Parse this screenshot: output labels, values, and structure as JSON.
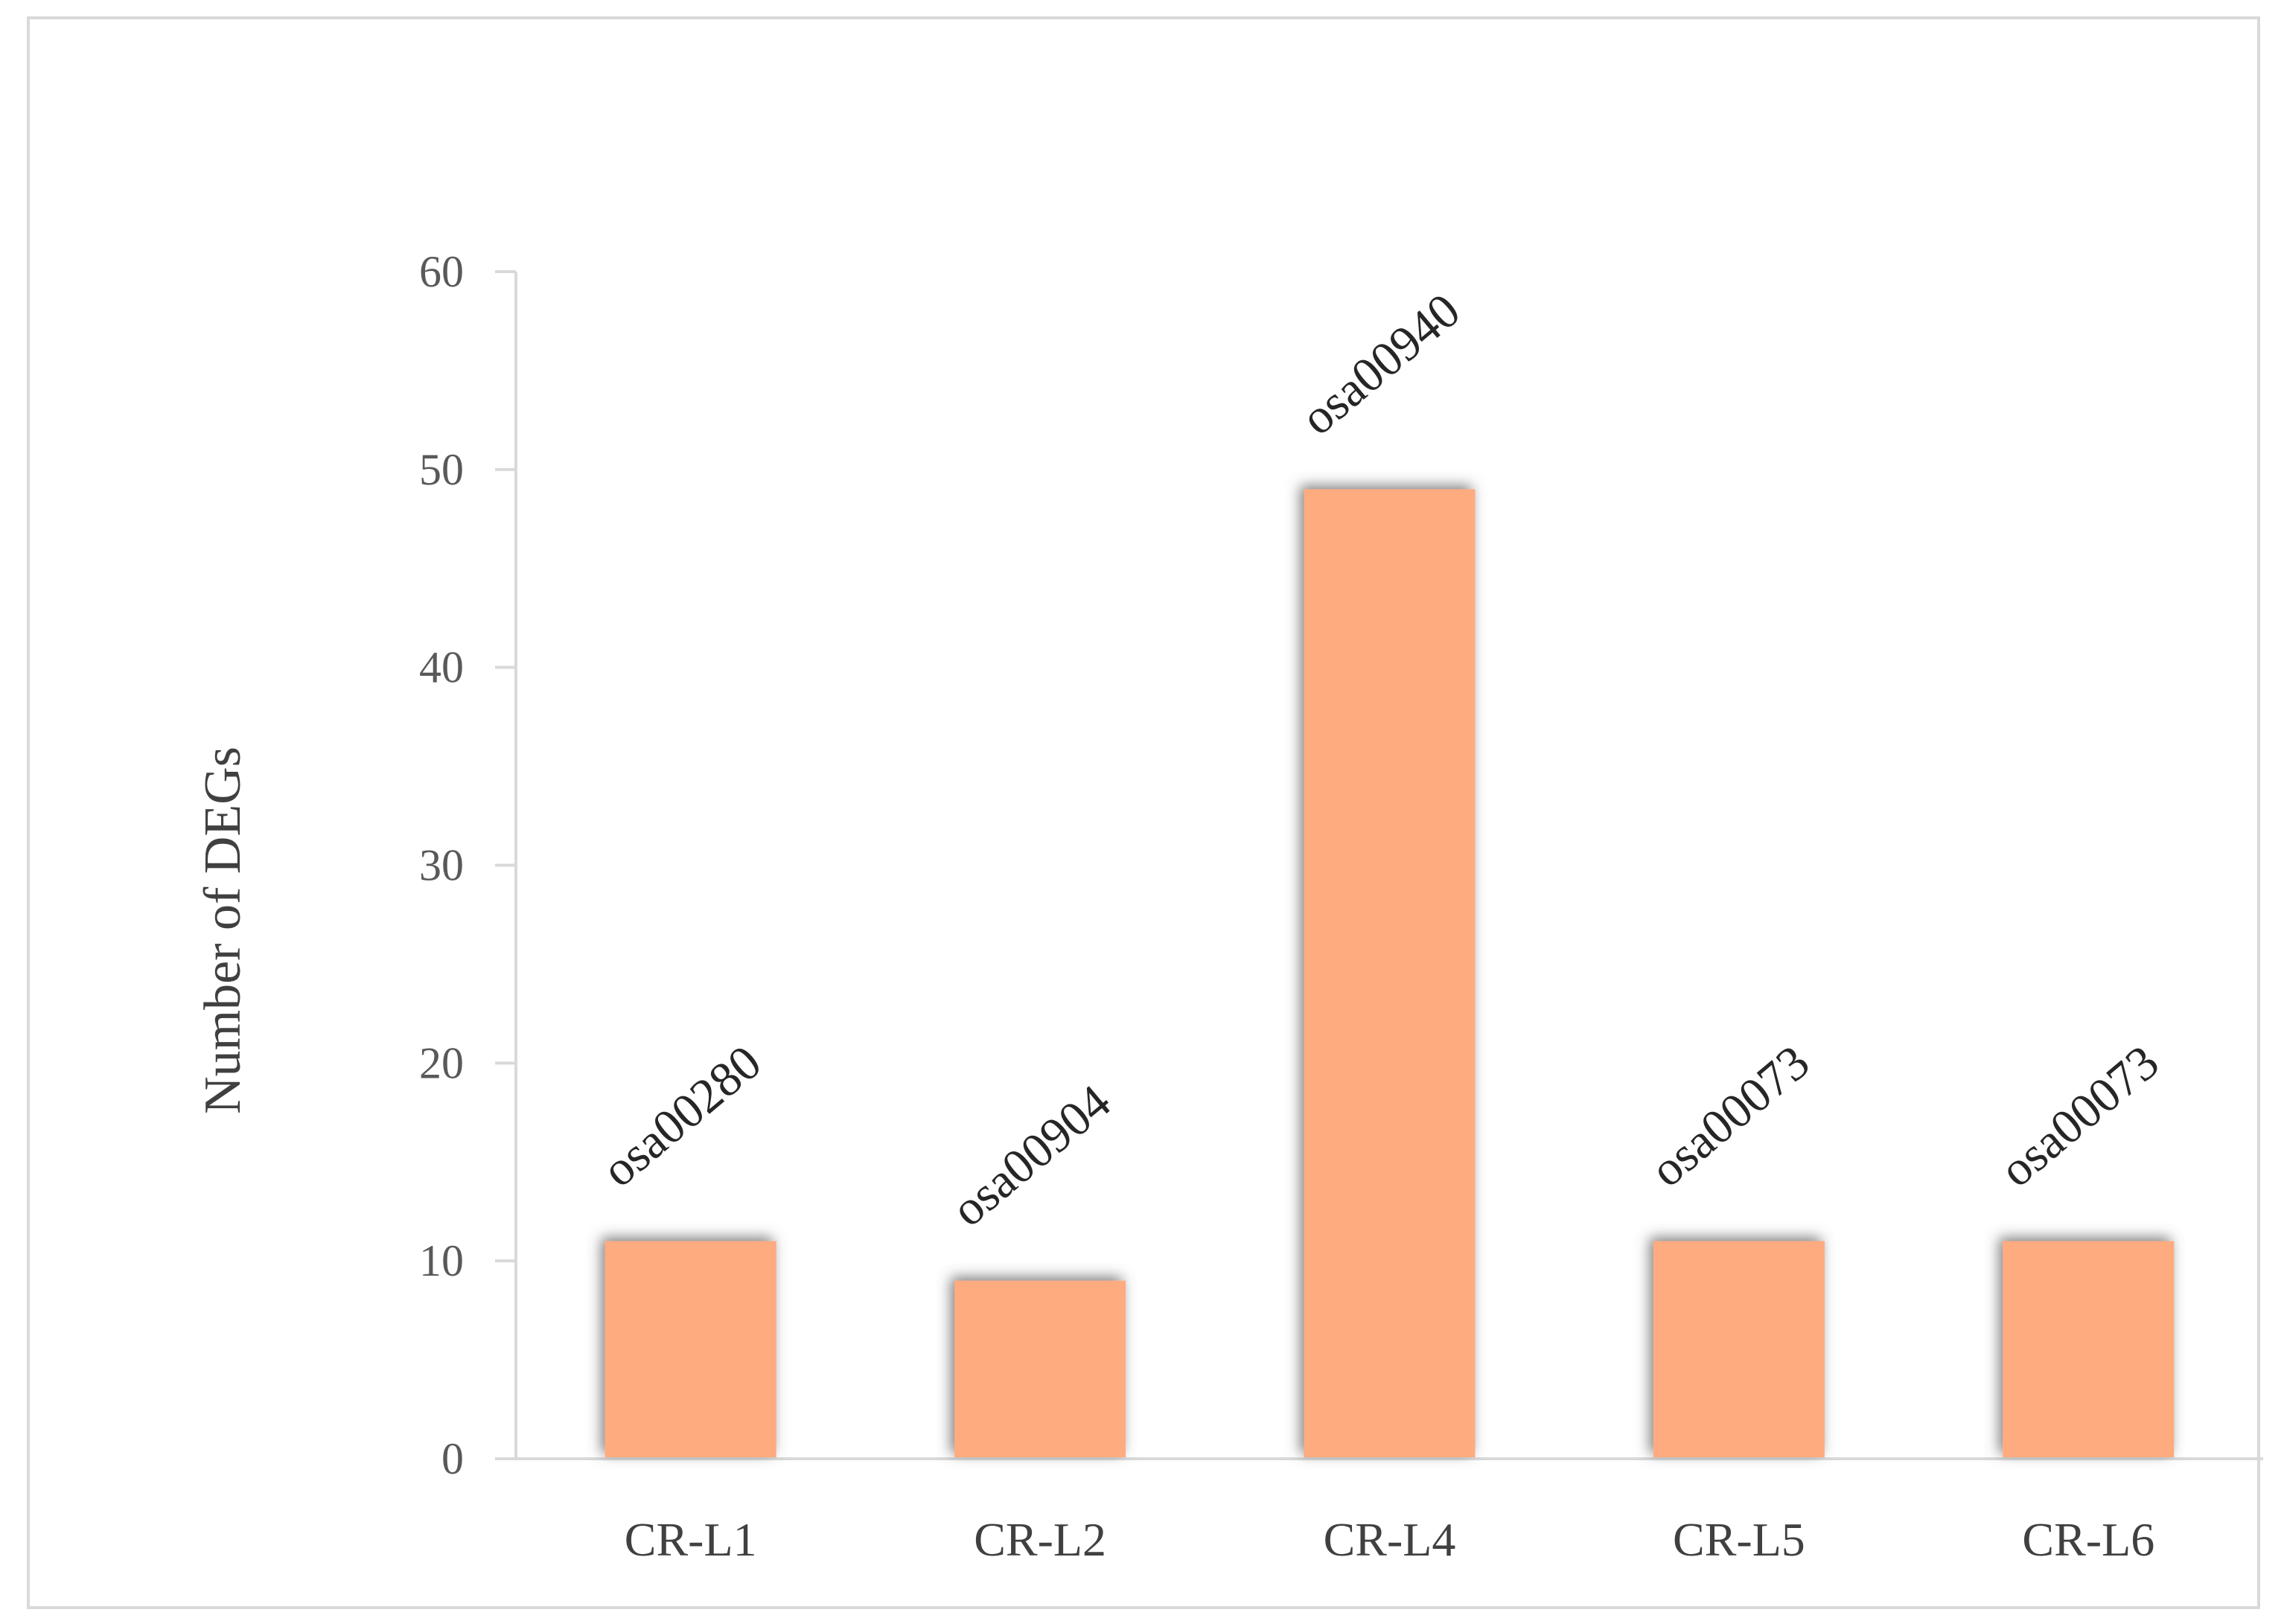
{
  "chart_data": {
    "type": "bar",
    "title": "",
    "xlabel": "",
    "ylabel": "Number of DEGs",
    "categories": [
      "CR-L1",
      "CR-L2",
      "CR-L4",
      "CR-L5",
      "CR-L6"
    ],
    "values": [
      11,
      9,
      49,
      11,
      11
    ],
    "data_labels": [
      "osa00280",
      "osa00904",
      "osa00940",
      "osa00073",
      "osa00073"
    ],
    "ylim": [
      0,
      60
    ],
    "yticks": [
      0,
      10,
      20,
      30,
      40,
      50,
      60
    ],
    "grid": false,
    "legend": "none",
    "bar_color": "#FFAB80",
    "bar_shadow_color": "#7f7f7f"
  }
}
